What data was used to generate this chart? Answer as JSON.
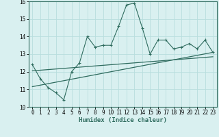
{
  "xlabel": "Humidex (Indice chaleur)",
  "x_values": [
    0,
    1,
    2,
    3,
    4,
    5,
    6,
    7,
    8,
    9,
    10,
    11,
    12,
    13,
    14,
    15,
    16,
    17,
    18,
    19,
    20,
    21,
    22,
    23
  ],
  "y_values": [
    12.4,
    11.6,
    11.1,
    10.8,
    10.4,
    12.0,
    12.5,
    14.0,
    13.4,
    13.5,
    13.5,
    14.6,
    15.8,
    15.9,
    14.5,
    13.0,
    13.8,
    13.8,
    13.3,
    13.4,
    13.6,
    13.3,
    13.8,
    13.1
  ],
  "trend1_x": [
    0,
    23
  ],
  "trend1_y": [
    12.05,
    12.85
  ],
  "trend2_x": [
    0,
    23
  ],
  "trend2_y": [
    11.15,
    13.1
  ],
  "line_color": "#2e6b5e",
  "background_color": "#d9f0f0",
  "grid_color": "#b8dede",
  "xlim": [
    -0.5,
    23.5
  ],
  "ylim": [
    10,
    16
  ],
  "yticks": [
    10,
    11,
    12,
    13,
    14,
    15,
    16
  ],
  "xticks": [
    0,
    1,
    2,
    3,
    4,
    5,
    6,
    7,
    8,
    9,
    10,
    11,
    12,
    13,
    14,
    15,
    16,
    17,
    18,
    19,
    20,
    21,
    22,
    23
  ],
  "tick_fontsize": 5.5,
  "xlabel_fontsize": 6.5
}
